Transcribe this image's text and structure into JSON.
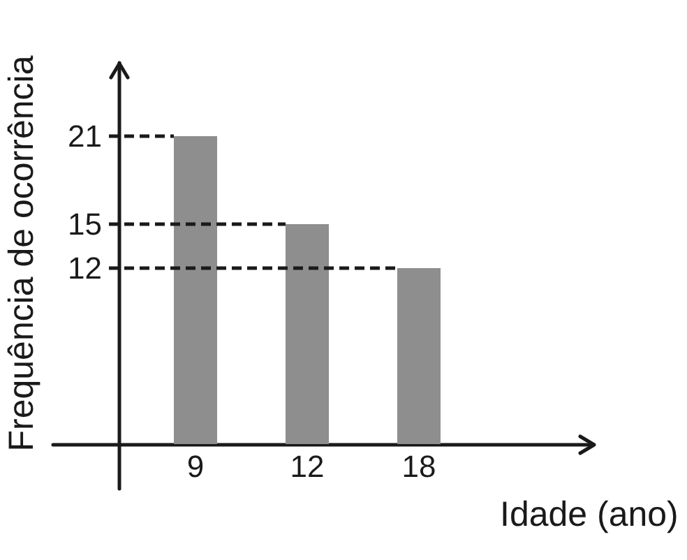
{
  "chart_data": {
    "type": "bar",
    "xlabel": "Idade (ano)",
    "ylabel": "Frequência de ocorrência",
    "categories": [
      "9",
      "12",
      "18"
    ],
    "values": [
      21,
      15,
      12
    ],
    "color": "#8e8e8e",
    "ylim": [
      0,
      26
    ],
    "yticks": [
      12,
      15,
      21
    ],
    "grid": false,
    "ref_lines": [
      {
        "axis": "y",
        "value": 21,
        "color": "#1a1a1a",
        "line_style": "dashed"
      },
      {
        "axis": "y",
        "value": 15,
        "color": "#1a1a1a",
        "line_style": "dashed"
      },
      {
        "axis": "y",
        "value": 12,
        "color": "#1a1a1a",
        "line_style": "dashed"
      }
    ]
  }
}
